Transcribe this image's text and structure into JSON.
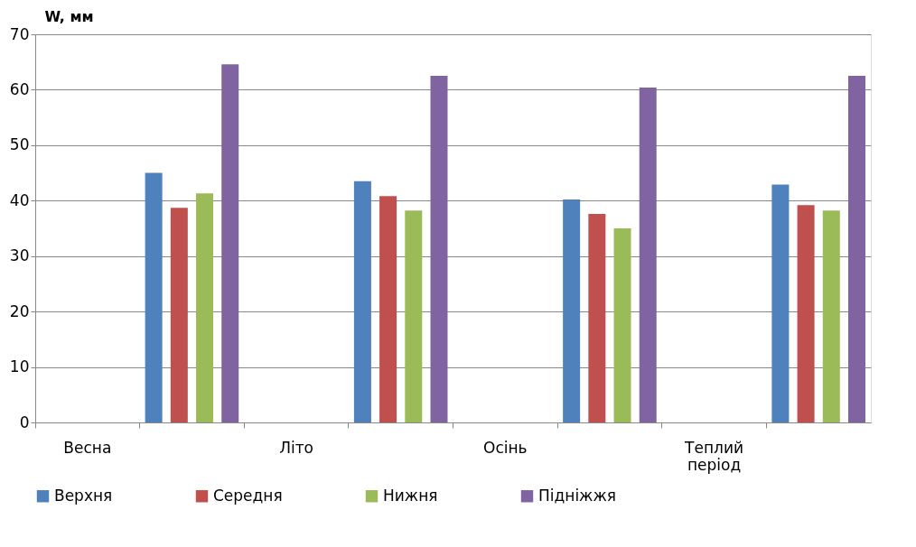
{
  "chart_data": {
    "type": "bar",
    "ylabel": "W, мм",
    "categories": [
      "Весна",
      null,
      "Літо",
      null,
      "Осінь",
      null,
      "Теплий період",
      null
    ],
    "series": [
      {
        "name": "Верхня",
        "color": "#4f81bd",
        "values": [
          null,
          45.0,
          null,
          43.5,
          null,
          40.2,
          null,
          42.9
        ]
      },
      {
        "name": "Середня",
        "color": "#c0504d",
        "values": [
          null,
          38.7,
          null,
          40.8,
          null,
          37.6,
          null,
          39.2
        ]
      },
      {
        "name": "Нижня",
        "color": "#9bbb59",
        "values": [
          null,
          41.3,
          null,
          38.2,
          null,
          35.0,
          null,
          38.2
        ]
      },
      {
        "name": "Підніжжя",
        "color": "#8064a2",
        "values": [
          null,
          64.6,
          null,
          62.5,
          null,
          60.4,
          null,
          62.5
        ]
      }
    ],
    "ylim": [
      0,
      70
    ],
    "yticks": [
      0,
      10,
      20,
      30,
      40,
      50,
      60,
      70
    ],
    "grid": "y",
    "legend": "bottom"
  }
}
